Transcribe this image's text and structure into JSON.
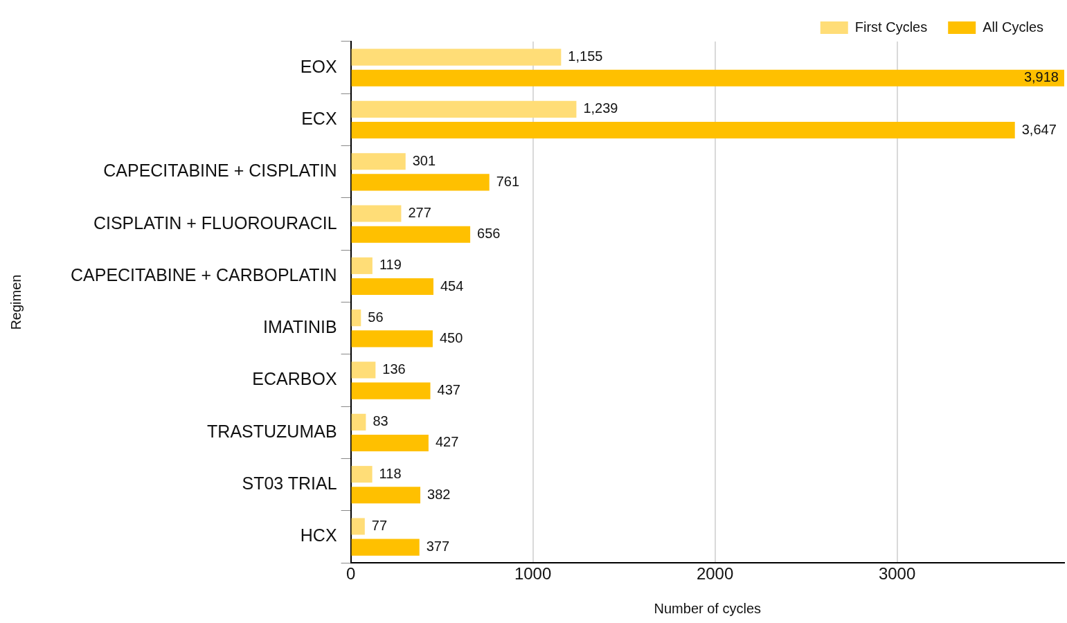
{
  "chart_data": {
    "type": "bar",
    "orientation": "horizontal",
    "xlabel": "Number of cycles",
    "ylabel": "Regimen",
    "categories": [
      "EOX",
      "ECX",
      "CAPECITABINE + CISPLATIN",
      "CISPLATIN + FLUOROURACIL",
      "CAPECITABINE + CARBOPLATIN",
      "IMATINIB",
      "ECARBOX",
      "TRASTUZUMAB",
      "ST03 TRIAL",
      "HCX"
    ],
    "series": [
      {
        "name": "First Cycles",
        "color": "#ffdd77",
        "values": [
          1155,
          1239,
          301,
          277,
          119,
          56,
          136,
          83,
          118,
          77
        ],
        "value_labels": [
          "1,155",
          "1,239",
          "301",
          "277",
          "119",
          "56",
          "136",
          "83",
          "118",
          "77"
        ]
      },
      {
        "name": "All Cycles",
        "color": "#ffc000",
        "values": [
          3918,
          3647,
          761,
          656,
          454,
          450,
          437,
          427,
          382,
          377
        ],
        "value_labels": [
          "3,918",
          "3,647",
          "761",
          "656",
          "454",
          "450",
          "437",
          "427",
          "382",
          "377"
        ]
      }
    ],
    "xlim": [
      0,
      3918
    ],
    "xticks": [
      0,
      1000,
      2000,
      3000
    ],
    "grid": "x",
    "legend": "top right"
  }
}
